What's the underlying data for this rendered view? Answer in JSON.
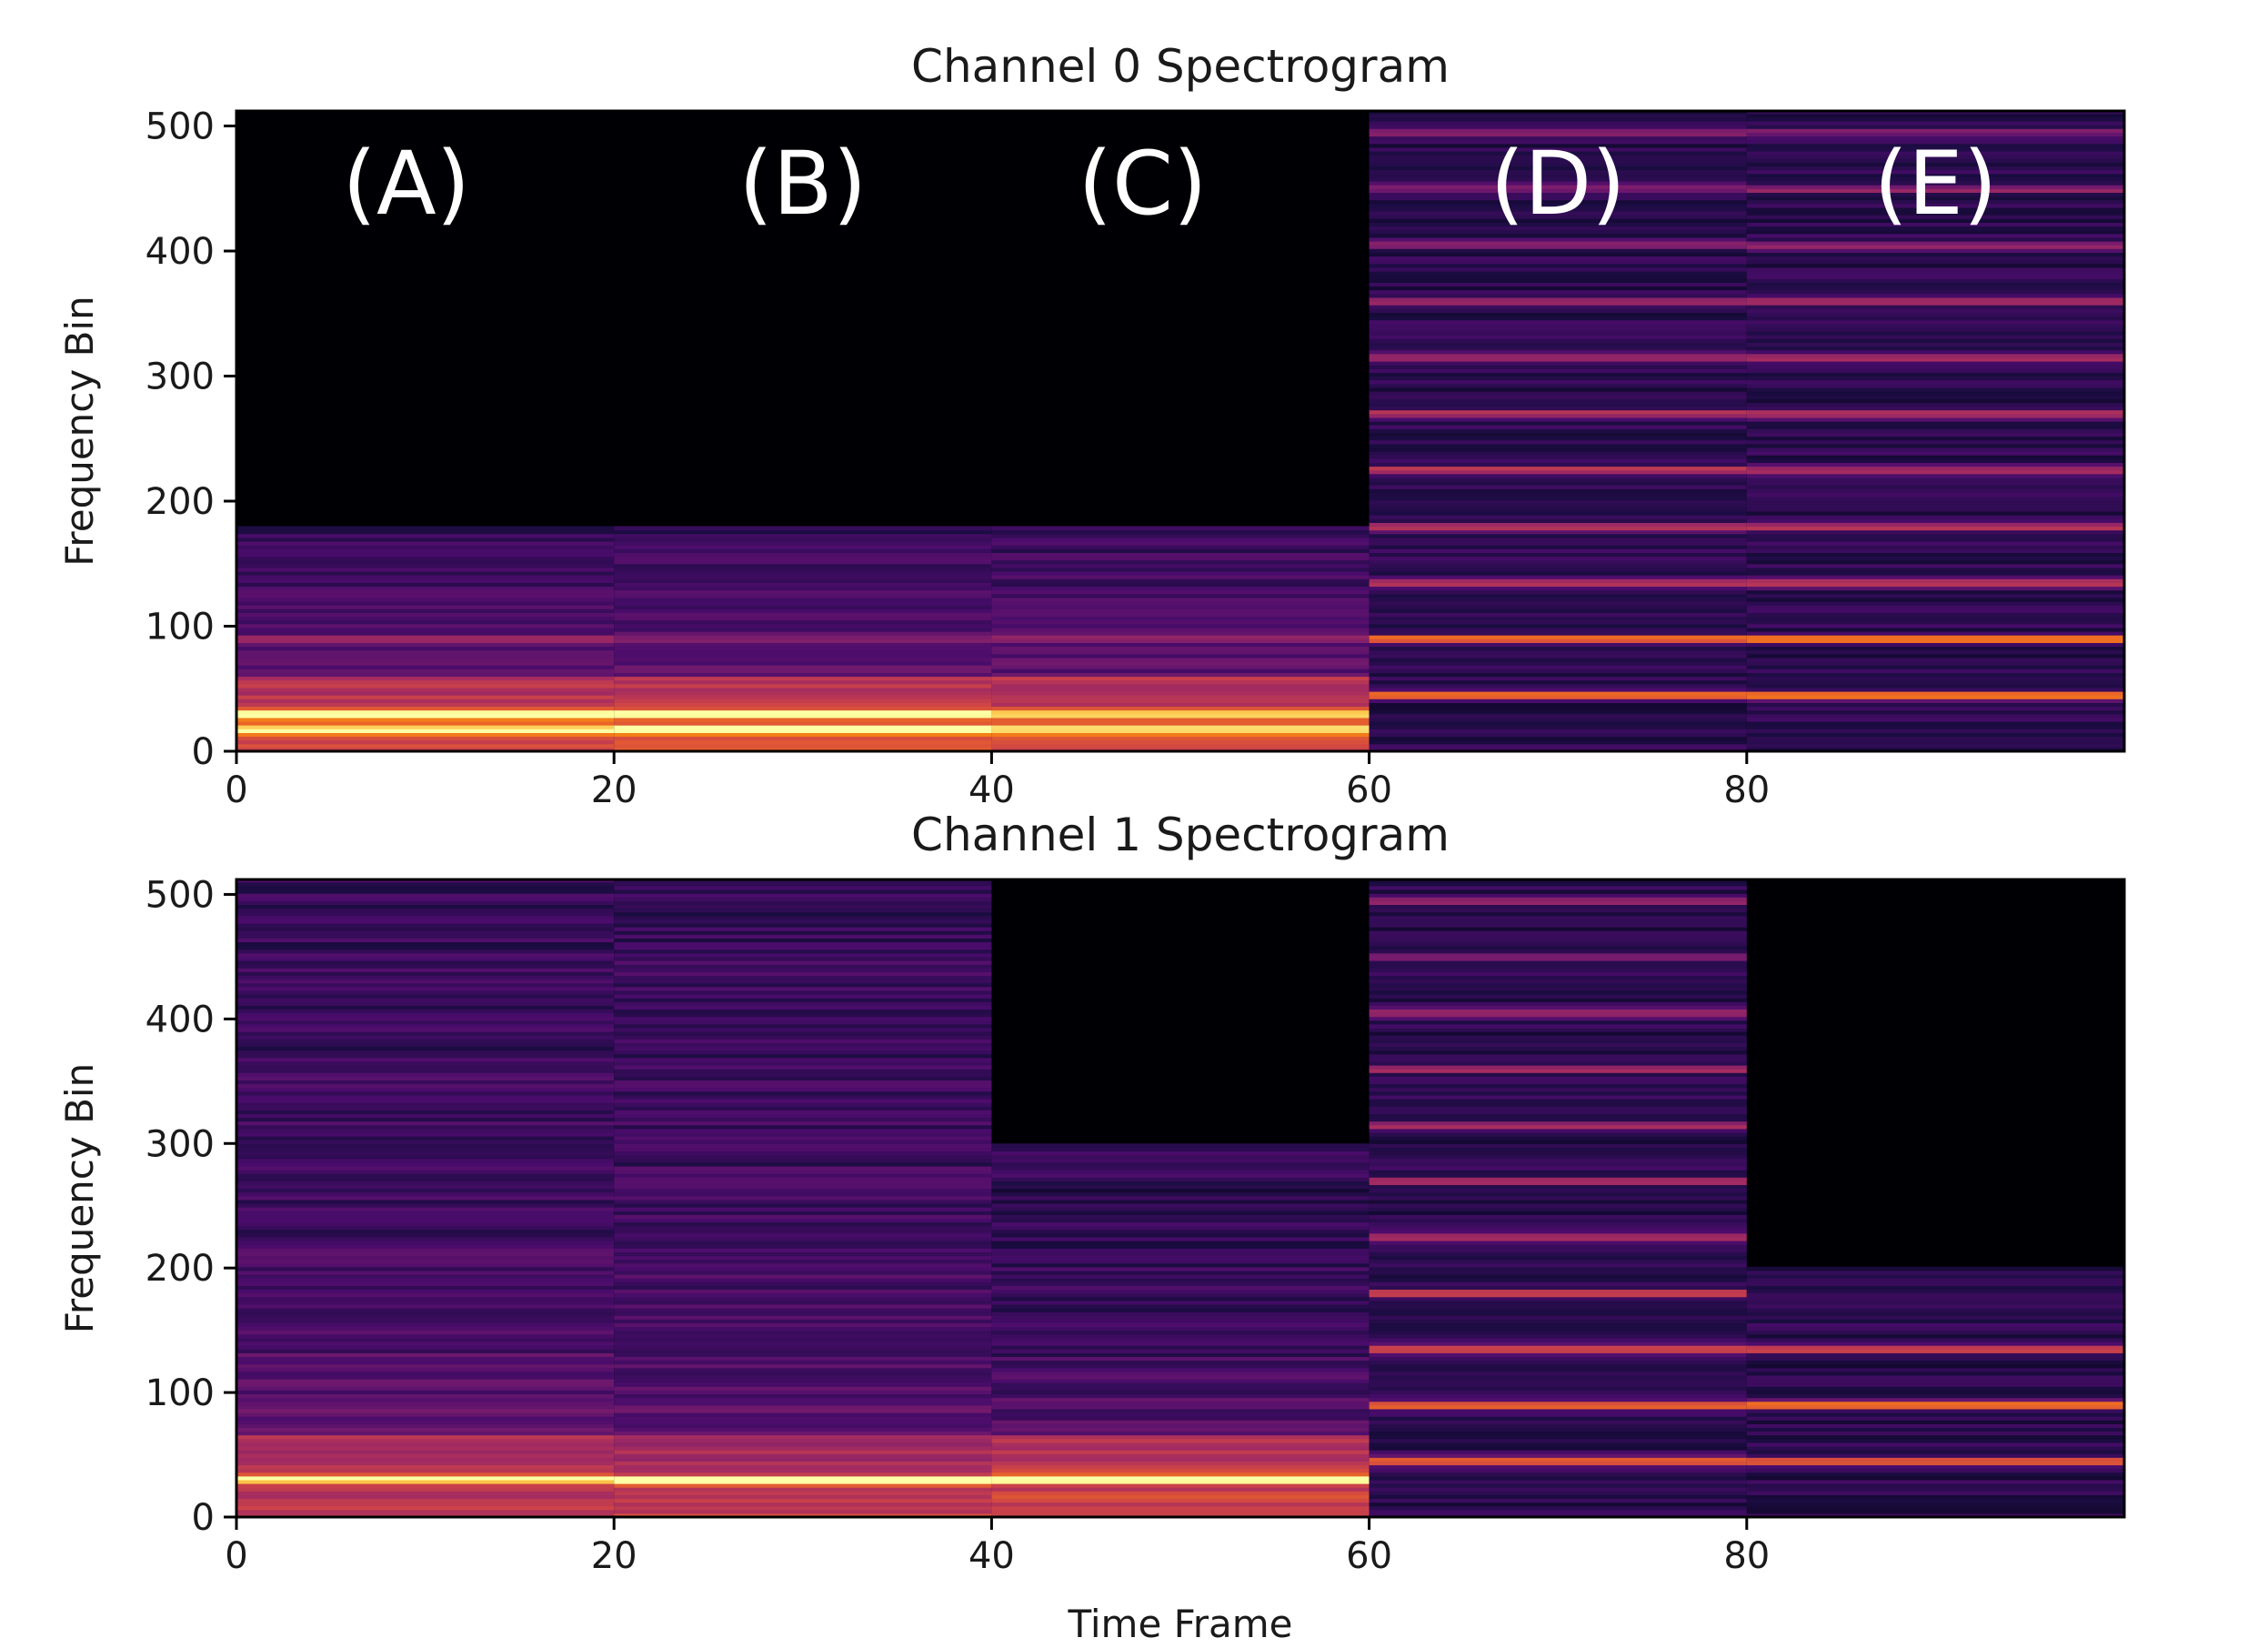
{
  "chart_data": [
    {
      "type": "heatmap",
      "title": "Channel 0 Spectrogram",
      "xlabel": "",
      "ylabel": "Frequency Bin",
      "xlim": [
        0,
        100
      ],
      "ylim": [
        0,
        512
      ],
      "xticks": [
        "0",
        "20",
        "40",
        "60",
        "80"
      ],
      "yticks": [
        "0",
        "100",
        "200",
        "300",
        "400",
        "500"
      ],
      "colormap": "inferno",
      "segments": [
        {
          "label": "(A)",
          "start": 0,
          "end": 20,
          "center": 9,
          "profile": "low",
          "harmonics": [
            18,
            30
          ],
          "cutoff": 180
        },
        {
          "label": "(B)",
          "start": 20,
          "end": 40,
          "center": 30,
          "profile": "low",
          "harmonics": [
            18,
            30
          ],
          "cutoff": 180
        },
        {
          "label": "(C)",
          "start": 40,
          "end": 60,
          "center": 48,
          "profile": "low",
          "harmonics": [
            18,
            30
          ],
          "cutoff": 180
        },
        {
          "label": "(D)",
          "start": 60,
          "end": 80,
          "center": 70,
          "profile": "harmonic",
          "harmonics": [
            45,
            90,
            135,
            180,
            225,
            270,
            315,
            360,
            405,
            450,
            495
          ],
          "cutoff": 512
        },
        {
          "label": "(E)",
          "start": 80,
          "end": 100,
          "center": 90,
          "profile": "harmonic",
          "harmonics": [
            45,
            90,
            135,
            180,
            225,
            270,
            315,
            360,
            405,
            450,
            495
          ],
          "cutoff": 512
        }
      ]
    },
    {
      "type": "heatmap",
      "title": "Channel 1 Spectrogram",
      "xlabel": "Time Frame",
      "ylabel": "Frequency Bin",
      "xlim": [
        0,
        100
      ],
      "ylim": [
        0,
        512
      ],
      "xticks": [
        "0",
        "20",
        "40",
        "60",
        "80"
      ],
      "yticks": [
        "0",
        "100",
        "200",
        "300",
        "400",
        "500"
      ],
      "colormap": "inferno",
      "segments": [
        {
          "start": 0,
          "end": 20,
          "profile": "broadband",
          "harmonics": [
            30
          ],
          "cutoff": 512
        },
        {
          "start": 20,
          "end": 40,
          "profile": "broadband",
          "harmonics": [
            30
          ],
          "cutoff": 512
        },
        {
          "start": 40,
          "end": 60,
          "profile": "broadband-low",
          "harmonics": [
            30
          ],
          "cutoff": 300
        },
        {
          "start": 60,
          "end": 80,
          "profile": "harmonic",
          "harmonics": [
            45,
            90,
            135,
            180,
            225,
            270,
            315,
            360,
            405,
            450,
            495
          ],
          "cutoff": 512
        },
        {
          "start": 80,
          "end": 100,
          "profile": "harmonic",
          "harmonics": [
            45,
            90,
            135
          ],
          "cutoff": 200
        }
      ]
    }
  ]
}
